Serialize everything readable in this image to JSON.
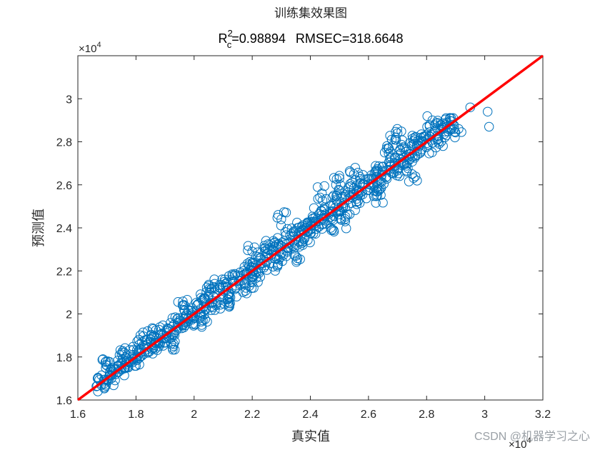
{
  "chart_data": {
    "type": "scatter",
    "title": "训练集效果图",
    "subtitle": {
      "r_base": "R",
      "r_sub": "c",
      "r_sup": "2",
      "r2_text": "=0.98894",
      "rmse_text": "RMSEC=318.6648"
    },
    "xlabel": "真实值",
    "ylabel": "预测值",
    "xlim": [
      16000,
      32000
    ],
    "ylim": [
      16000,
      32000
    ],
    "x_ticks": [
      {
        "value": 16000,
        "label": "1.6"
      },
      {
        "value": 18000,
        "label": "1.8"
      },
      {
        "value": 20000,
        "label": "2"
      },
      {
        "value": 22000,
        "label": "2.2"
      },
      {
        "value": 24000,
        "label": "2.4"
      },
      {
        "value": 26000,
        "label": "2.6"
      },
      {
        "value": 28000,
        "label": "2.8"
      },
      {
        "value": 30000,
        "label": "3"
      },
      {
        "value": 32000,
        "label": "3.2"
      }
    ],
    "y_ticks": [
      {
        "value": 16000,
        "label": "1.6"
      },
      {
        "value": 18000,
        "label": "1.8"
      },
      {
        "value": 20000,
        "label": "2"
      },
      {
        "value": 22000,
        "label": "2.2"
      },
      {
        "value": 24000,
        "label": "2.4"
      },
      {
        "value": 26000,
        "label": "2.6"
      },
      {
        "value": 28000,
        "label": "2.8"
      },
      {
        "value": 30000,
        "label": "3"
      }
    ],
    "exponent_base": "×10",
    "exponent_power": "4",
    "grid": false,
    "marker": "open-circle",
    "marker_color": "#0072BD",
    "reference_line": {
      "x": [
        16000,
        32000
      ],
      "y": [
        16000,
        32000
      ],
      "color": "#FF0000"
    },
    "series": [
      {
        "points": [
          [
            16700,
            17000
          ],
          [
            16900,
            16950
          ],
          [
            17050,
            16900
          ],
          [
            17100,
            17300
          ],
          [
            17200,
            17500
          ],
          [
            17300,
            17200
          ],
          [
            17400,
            17600
          ],
          [
            17500,
            17400
          ],
          [
            17600,
            17800
          ],
          [
            17700,
            17550
          ],
          [
            17800,
            17750
          ],
          [
            17900,
            18100
          ],
          [
            18000,
            17900
          ],
          [
            18100,
            18300
          ],
          [
            18200,
            18050
          ],
          [
            18300,
            18500
          ],
          [
            18400,
            18250
          ],
          [
            18500,
            18700
          ],
          [
            18600,
            18450
          ],
          [
            18700,
            18900
          ],
          [
            18800,
            18650
          ],
          [
            18900,
            19100
          ],
          [
            19000,
            18850
          ],
          [
            19100,
            19300
          ],
          [
            19200,
            19050
          ],
          [
            19300,
            19500
          ],
          [
            19400,
            19250
          ],
          [
            19500,
            19700
          ],
          [
            19600,
            19450
          ],
          [
            19700,
            19900
          ],
          [
            19800,
            19650
          ],
          [
            19900,
            20150
          ],
          [
            20000,
            19800
          ],
          [
            20100,
            20400
          ],
          [
            20200,
            19950
          ],
          [
            20300,
            20600
          ],
          [
            20400,
            20200
          ],
          [
            20500,
            20800
          ],
          [
            20600,
            20350
          ],
          [
            20700,
            21000
          ],
          [
            20800,
            20550
          ],
          [
            20900,
            21200
          ],
          [
            21000,
            20750
          ],
          [
            21100,
            21400
          ],
          [
            21200,
            20950
          ],
          [
            21300,
            21600
          ],
          [
            21400,
            21150
          ],
          [
            21500,
            21800
          ],
          [
            21600,
            21350
          ],
          [
            21700,
            22000
          ],
          [
            21800,
            21550
          ],
          [
            21900,
            22200
          ],
          [
            22000,
            21750
          ],
          [
            22100,
            22400
          ],
          [
            22200,
            21950
          ],
          [
            22300,
            22600
          ],
          [
            22400,
            22150
          ],
          [
            22500,
            22800
          ],
          [
            22600,
            22350
          ],
          [
            22700,
            23000
          ],
          [
            22800,
            22550
          ],
          [
            22900,
            23250
          ],
          [
            23000,
            22800
          ],
          [
            23100,
            23400
          ],
          [
            23200,
            22950
          ],
          [
            23300,
            23650
          ],
          [
            23400,
            23150
          ],
          [
            23500,
            23850
          ],
          [
            23600,
            23350
          ],
          [
            23700,
            24050
          ],
          [
            23800,
            23550
          ],
          [
            23900,
            24250
          ],
          [
            24000,
            23750
          ],
          [
            24100,
            24450
          ],
          [
            24200,
            23950
          ],
          [
            24300,
            24650
          ],
          [
            24400,
            24150
          ],
          [
            24500,
            24850
          ],
          [
            24600,
            24350
          ],
          [
            24700,
            25050
          ],
          [
            24800,
            24550
          ],
          [
            24900,
            25250
          ],
          [
            25000,
            24750
          ],
          [
            25100,
            25450
          ],
          [
            25200,
            24950
          ],
          [
            25300,
            25650
          ],
          [
            25400,
            25150
          ],
          [
            25500,
            25850
          ],
          [
            25600,
            25350
          ],
          [
            25700,
            26050
          ],
          [
            25800,
            25550
          ],
          [
            25900,
            26250
          ],
          [
            26000,
            25750
          ],
          [
            26100,
            26450
          ],
          [
            26200,
            25950
          ],
          [
            26300,
            26650
          ],
          [
            26400,
            26150
          ],
          [
            26500,
            26850
          ],
          [
            26600,
            26350
          ],
          [
            26700,
            27050
          ],
          [
            26800,
            26550
          ],
          [
            26900,
            27250
          ],
          [
            27000,
            26750
          ],
          [
            27100,
            27450
          ],
          [
            27200,
            26950
          ],
          [
            27300,
            27650
          ],
          [
            27400,
            27150
          ],
          [
            27500,
            27850
          ],
          [
            27600,
            27350
          ],
          [
            27700,
            28050
          ],
          [
            27800,
            27550
          ],
          [
            27900,
            28250
          ],
          [
            28000,
            27750
          ],
          [
            28100,
            28450
          ],
          [
            28200,
            27950
          ],
          [
            28300,
            28550
          ],
          [
            28400,
            28150
          ],
          [
            28500,
            28750
          ],
          [
            28600,
            28350
          ],
          [
            28700,
            28900
          ],
          [
            28800,
            28550
          ],
          [
            28850,
            29100
          ],
          [
            28900,
            28800
          ],
          [
            29100,
            28600
          ],
          [
            29200,
            28450
          ],
          [
            17600,
            18200
          ],
          [
            18400,
            19200
          ],
          [
            19300,
            18600
          ],
          [
            20500,
            21300
          ],
          [
            21200,
            20500
          ],
          [
            22000,
            22900
          ],
          [
            23500,
            22700
          ],
          [
            24400,
            25600
          ],
          [
            25200,
            24300
          ],
          [
            25500,
            26500
          ],
          [
            26300,
            25500
          ],
          [
            26700,
            27700
          ],
          [
            27500,
            26500
          ],
          [
            28200,
            29000
          ],
          [
            23900,
            24200
          ],
          [
            20300,
            19700
          ],
          [
            19600,
            20400
          ],
          [
            21900,
            21300
          ],
          [
            22600,
            23200
          ],
          [
            24700,
            24000
          ],
          [
            23000,
            24400
          ],
          [
            25000,
            26300
          ],
          [
            27000,
            28400
          ],
          [
            26800,
            28100
          ],
          [
            29500,
            29600
          ],
          [
            30100,
            29400
          ],
          [
            30150,
            28700
          ],
          [
            17000,
            17600
          ],
          [
            16800,
            16700
          ],
          [
            18200,
            18700
          ]
        ]
      }
    ]
  },
  "watermark": "CSDN @机器学习之心"
}
